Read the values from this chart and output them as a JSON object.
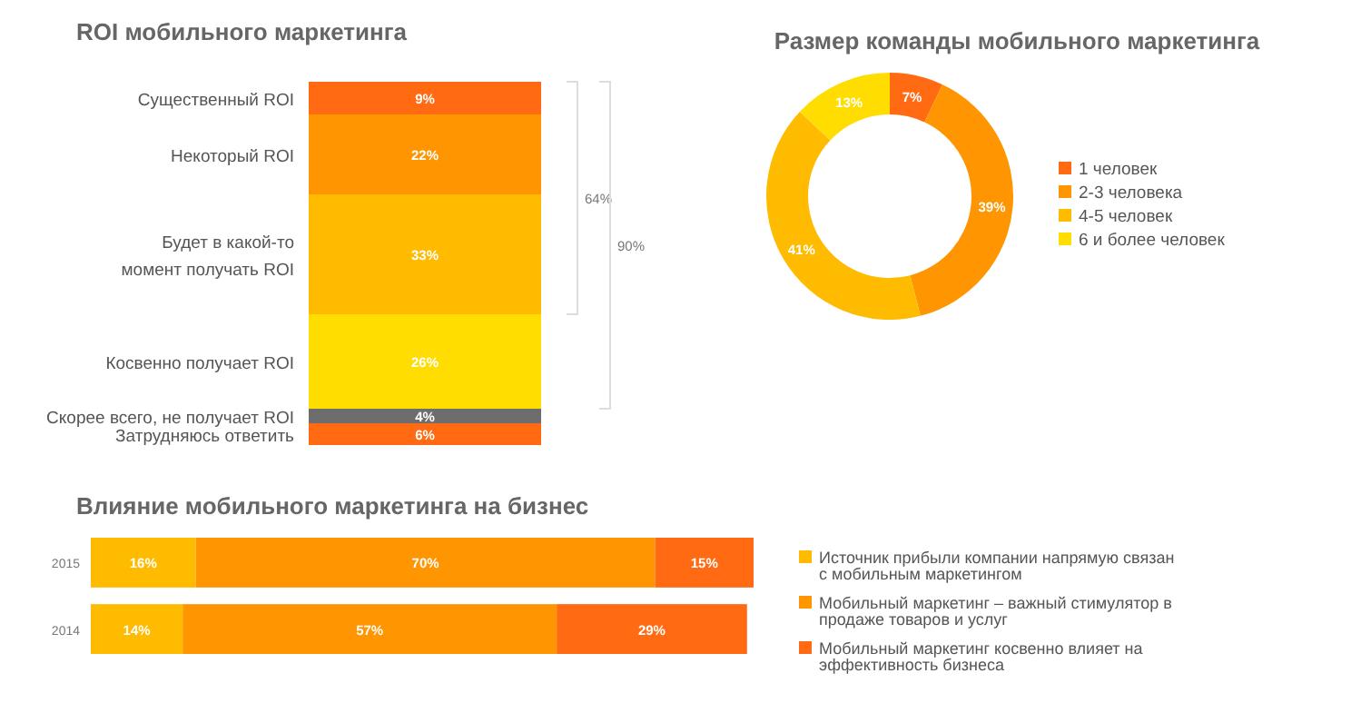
{
  "chart_data": [
    {
      "type": "bar",
      "title": "ROI мобильного маркетинга",
      "stacked": true,
      "categories": [
        null
      ],
      "legend": false,
      "series": [
        {
          "name": "Затрудняюсь ответить",
          "color": "#ff6a13",
          "values": [
            6
          ],
          "value_labels": [
            "6%"
          ]
        },
        {
          "name": "Скорее всего, не получает ROI",
          "color": "#6d6d6d",
          "values": [
            4
          ],
          "value_labels": [
            "4%"
          ]
        },
        {
          "name": "Косвенно получает ROI",
          "color": "#ffdd00",
          "values": [
            26
          ],
          "value_labels": [
            "26%"
          ]
        },
        {
          "name": "Будет в какой-то момент получать ROI",
          "color": "#ffbb00",
          "values": [
            33
          ],
          "value_labels": [
            "33%"
          ]
        },
        {
          "name": "Некоторый ROI",
          "color": "#ff9500",
          "values": [
            22
          ],
          "value_labels": [
            "22%"
          ]
        },
        {
          "name": "Существенный ROI",
          "color": "#ff6a13",
          "values": [
            9
          ],
          "value_labels": [
            "9%"
          ]
        }
      ],
      "annotations": [
        "64%",
        "90%"
      ]
    },
    {
      "type": "donut",
      "title": "Размер команды мобильного маркетинга",
      "legend": "right",
      "categories": [
        "1 человек",
        "2-3 человека",
        "4-5 человек",
        "6 и более человек"
      ],
      "values": [
        7,
        39,
        41,
        13
      ],
      "colors": [
        "#ff6a13",
        "#ff9500",
        "#ffbb00",
        "#ffdd00"
      ],
      "value_labels": [
        "7%",
        "39%",
        "41%",
        "13%"
      ]
    },
    {
      "type": "bar",
      "title": "Влияние мобильного маркетинга на бизнес",
      "orientation": "horizontal",
      "stacked": true,
      "legend": "right",
      "categories": [
        "2015",
        "2014"
      ],
      "series": [
        {
          "name": "Источник прибыли компании напрямую связан с мобильным маркетингом",
          "color": "#ffbb00",
          "values": [
            16,
            14
          ],
          "value_labels": [
            "16%",
            "14%"
          ]
        },
        {
          "name": "Мобильный маркетинг – важный стимулятор в продаже товаров и услуг",
          "color": "#ff9500",
          "values": [
            70,
            57
          ],
          "value_labels": [
            "70%",
            "57%"
          ]
        },
        {
          "name": "Мобильный маркетинг косвенно влияет на эффективность бизнеса",
          "color": "#ff6a13",
          "values": [
            15,
            29
          ],
          "value_labels": [
            "15%",
            "29%"
          ]
        }
      ]
    }
  ]
}
